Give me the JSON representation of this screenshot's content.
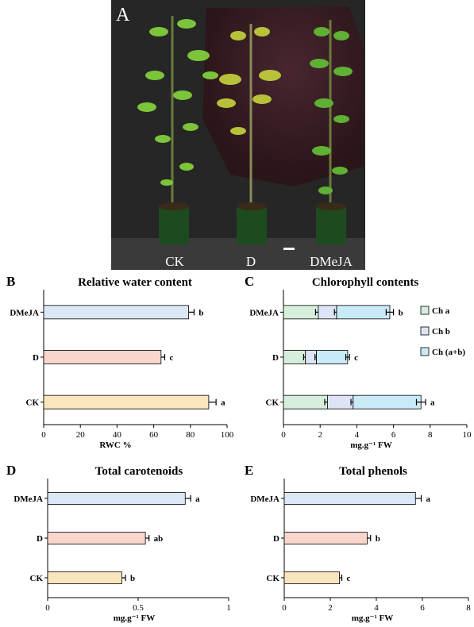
{
  "photo": {
    "panel_letter": "A",
    "labels": [
      "CK",
      "D",
      "DMeJA"
    ]
  },
  "colors": {
    "DMeJA": "#dce7f5",
    "D": "#f8d6cb",
    "CK": "#fbe5bd",
    "ch_a": "#d6efdc",
    "ch_b": "#dde4f5",
    "ch_ab": "#c9eaf7"
  },
  "chart_data": [
    {
      "panel": "B",
      "type": "bar",
      "orientation": "horizontal",
      "title": "Relative water content",
      "xlabel": "RWC %",
      "categories": [
        "DMeJA",
        "D",
        "CK"
      ],
      "values": [
        79,
        64,
        90
      ],
      "errors": [
        3,
        2,
        4
      ],
      "significance": [
        "b",
        "c",
        "a"
      ],
      "xlim": [
        0,
        100
      ],
      "xticks": [
        "0",
        "20",
        "40",
        "60",
        "80",
        "100"
      ]
    },
    {
      "panel": "C",
      "type": "bar",
      "orientation": "horizontal",
      "stacked": true,
      "title": "Chlorophyll contents",
      "xlabel": "mg.g⁻¹ FW",
      "categories": [
        "DMeJA",
        "D",
        "CK"
      ],
      "series": [
        {
          "name": "Ch a",
          "values": [
            1.9,
            1.2,
            2.4
          ],
          "errors": [
            0.15,
            0.1,
            0.15
          ]
        },
        {
          "name": "Ch b",
          "values": [
            1.0,
            0.6,
            1.4
          ],
          "errors": [
            0.12,
            0.08,
            0.12
          ]
        },
        {
          "name": "Ch (a+b)",
          "values": [
            2.9,
            1.7,
            3.7
          ],
          "errors": [
            0.2,
            0.1,
            0.25
          ]
        }
      ],
      "significance": [
        "b",
        "c",
        "a"
      ],
      "legend_position": "right",
      "xlim": [
        0,
        10
      ],
      "xticks": [
        "0",
        "2",
        "4",
        "6",
        "8",
        "10"
      ]
    },
    {
      "panel": "D",
      "type": "bar",
      "orientation": "horizontal",
      "title": "Total carotenoids",
      "xlabel": "mg.g⁻¹ FW",
      "categories": [
        "DMeJA",
        "D",
        "CK"
      ],
      "values": [
        0.76,
        0.54,
        0.41
      ],
      "errors": [
        0.03,
        0.02,
        0.02
      ],
      "significance": [
        "a",
        "ab",
        "b"
      ],
      "xlim": [
        0,
        1
      ],
      "xticks": [
        "0",
        "0.5",
        "1"
      ]
    },
    {
      "panel": "E",
      "type": "bar",
      "orientation": "horizontal",
      "title": "Total phenols",
      "xlabel": "mg.g⁻¹ FW",
      "categories": [
        "DMeJA",
        "D",
        "CK"
      ],
      "values": [
        5.7,
        3.6,
        2.4
      ],
      "errors": [
        0.25,
        0.15,
        0.1
      ],
      "significance": [
        "a",
        "b",
        "c"
      ],
      "xlim": [
        0,
        8
      ],
      "xticks": [
        "0",
        "2",
        "4",
        "6",
        "8"
      ]
    }
  ]
}
